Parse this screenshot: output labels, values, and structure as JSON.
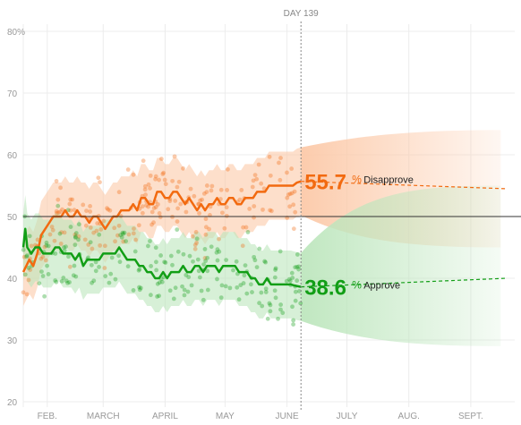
{
  "chart_data": {
    "type": "line",
    "day_marker_label": "DAY 139",
    "current_day": 139,
    "ylim": [
      20,
      80
    ],
    "y_ticks": [
      {
        "value": 80,
        "label": "80%"
      },
      {
        "value": 70,
        "label": "70"
      },
      {
        "value": 60,
        "label": "60"
      },
      {
        "value": 50,
        "label": "50"
      },
      {
        "value": 40,
        "label": "40"
      },
      {
        "value": 30,
        "label": "30"
      },
      {
        "value": 20,
        "label": "20"
      }
    ],
    "x_ticks": [
      {
        "day": 12,
        "label": "FEB."
      },
      {
        "day": 40,
        "label": "MARCH"
      },
      {
        "day": 71,
        "label": "APRIL"
      },
      {
        "day": 101,
        "label": "MAY"
      },
      {
        "day": 132,
        "label": "JUNE"
      },
      {
        "day": 162,
        "label": "JULY"
      },
      {
        "day": 193,
        "label": "AUG."
      },
      {
        "day": 224,
        "label": "SEPT."
      }
    ],
    "reference_line": 50,
    "series": [
      {
        "name": "Disapprove",
        "current_value": "55.7",
        "pct_symbol": "%",
        "color": "#f26a10",
        "band_color": "#fcc9a8",
        "forecast_end": 54.5,
        "forecast_band": {
          "day": 230,
          "lower": 45,
          "upper": 64
        },
        "points": [
          [
            0,
            41
          ],
          [
            3,
            43
          ],
          [
            5,
            42
          ],
          [
            7,
            44
          ],
          [
            9,
            47
          ],
          [
            11,
            48
          ],
          [
            13,
            49
          ],
          [
            15,
            50
          ],
          [
            17,
            50
          ],
          [
            19,
            50
          ],
          [
            21,
            51
          ],
          [
            23,
            50
          ],
          [
            25,
            50
          ],
          [
            27,
            51
          ],
          [
            29,
            50
          ],
          [
            31,
            50
          ],
          [
            33,
            49
          ],
          [
            35,
            50
          ],
          [
            37,
            50
          ],
          [
            39,
            49
          ],
          [
            41,
            48
          ],
          [
            43,
            49
          ],
          [
            45,
            50
          ],
          [
            47,
            50
          ],
          [
            49,
            51
          ],
          [
            51,
            51
          ],
          [
            53,
            51
          ],
          [
            55,
            52
          ],
          [
            57,
            51
          ],
          [
            59,
            53
          ],
          [
            61,
            53
          ],
          [
            63,
            52
          ],
          [
            65,
            52
          ],
          [
            67,
            54
          ],
          [
            69,
            54
          ],
          [
            71,
            53
          ],
          [
            73,
            53
          ],
          [
            75,
            54
          ],
          [
            77,
            54
          ],
          [
            79,
            53
          ],
          [
            81,
            52
          ],
          [
            83,
            53
          ],
          [
            85,
            52
          ],
          [
            87,
            51
          ],
          [
            89,
            52
          ],
          [
            91,
            51
          ],
          [
            93,
            52
          ],
          [
            95,
            52
          ],
          [
            97,
            53
          ],
          [
            99,
            52
          ],
          [
            101,
            52
          ],
          [
            103,
            53
          ],
          [
            105,
            53
          ],
          [
            107,
            52
          ],
          [
            109,
            52
          ],
          [
            111,
            53
          ],
          [
            113,
            53
          ],
          [
            115,
            53
          ],
          [
            117,
            54
          ],
          [
            119,
            54
          ],
          [
            121,
            54
          ],
          [
            123,
            55
          ],
          [
            125,
            55
          ],
          [
            127,
            55
          ],
          [
            129,
            55
          ],
          [
            131,
            55
          ],
          [
            133,
            55
          ],
          [
            135,
            55
          ],
          [
            137,
            55.5
          ],
          [
            139,
            55.7
          ]
        ]
      },
      {
        "name": "Approve",
        "current_value": "38.6",
        "pct_symbol": "%",
        "color": "#129e16",
        "band_color": "#bde6bd",
        "forecast_end": 40,
        "forecast_band": {
          "day": 230,
          "lower": 29,
          "upper": 55
        },
        "points": [
          [
            0,
            45
          ],
          [
            1,
            48
          ],
          [
            2,
            45
          ],
          [
            4,
            44
          ],
          [
            6,
            45
          ],
          [
            8,
            45
          ],
          [
            10,
            44
          ],
          [
            12,
            44
          ],
          [
            14,
            44
          ],
          [
            16,
            45
          ],
          [
            18,
            45
          ],
          [
            20,
            44
          ],
          [
            22,
            44
          ],
          [
            24,
            44
          ],
          [
            26,
            43
          ],
          [
            28,
            44
          ],
          [
            30,
            42
          ],
          [
            32,
            43
          ],
          [
            34,
            43
          ],
          [
            36,
            43
          ],
          [
            38,
            43
          ],
          [
            40,
            44
          ],
          [
            42,
            44
          ],
          [
            44,
            44
          ],
          [
            46,
            44
          ],
          [
            48,
            45
          ],
          [
            50,
            44
          ],
          [
            52,
            43
          ],
          [
            54,
            43
          ],
          [
            56,
            43
          ],
          [
            58,
            42
          ],
          [
            60,
            42
          ],
          [
            62,
            41
          ],
          [
            64,
            41
          ],
          [
            66,
            40
          ],
          [
            68,
            40
          ],
          [
            70,
            41
          ],
          [
            72,
            40
          ],
          [
            74,
            41
          ],
          [
            76,
            41
          ],
          [
            78,
            41
          ],
          [
            80,
            42
          ],
          [
            82,
            41
          ],
          [
            84,
            41
          ],
          [
            86,
            42
          ],
          [
            88,
            42
          ],
          [
            90,
            41
          ],
          [
            92,
            42
          ],
          [
            94,
            42
          ],
          [
            96,
            42
          ],
          [
            98,
            41
          ],
          [
            100,
            42
          ],
          [
            102,
            42
          ],
          [
            104,
            42
          ],
          [
            106,
            42
          ],
          [
            108,
            41
          ],
          [
            110,
            41
          ],
          [
            112,
            41
          ],
          [
            114,
            40
          ],
          [
            116,
            40
          ],
          [
            118,
            39
          ],
          [
            120,
            39
          ],
          [
            122,
            40
          ],
          [
            124,
            39
          ],
          [
            126,
            39
          ],
          [
            128,
            39
          ],
          [
            130,
            39
          ],
          [
            132,
            39
          ],
          [
            134,
            39
          ],
          [
            136,
            38.8
          ],
          [
            139,
            38.6
          ]
        ]
      }
    ]
  }
}
